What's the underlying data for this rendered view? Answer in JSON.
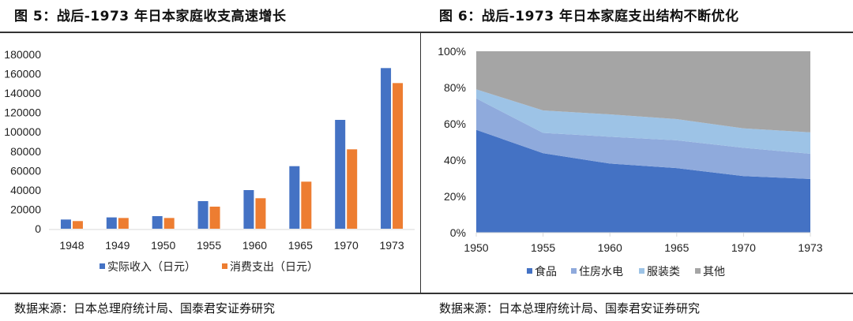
{
  "left": {
    "title": "图 5：战后-1973 年日本家庭收支高速增长",
    "source": "数据来源：日本总理府统计局、国泰君安证券研究"
  },
  "right": {
    "title": "图 6：战后-1973 年日本家庭支出结构不断优化",
    "source": "数据来源：日本总理府统计局、国泰君安证券研究"
  },
  "chart_data": [
    {
      "type": "bar",
      "categories": [
        "1948",
        "1949",
        "1950",
        "1955",
        "1960",
        "1965",
        "1970",
        "1973"
      ],
      "series": [
        {
          "name": "实际收入（日元）",
          "color": "#4472C4",
          "values": [
            9500,
            11700,
            13000,
            28500,
            39900,
            64600,
            112400,
            165900
          ]
        },
        {
          "name": "消费支出（日元）",
          "color": "#ED7D31",
          "values": [
            7900,
            11100,
            11100,
            22800,
            31500,
            48600,
            82000,
            150400
          ]
        }
      ],
      "ylim": [
        0,
        180000
      ],
      "yticks": [
        "0",
        "20000",
        "40000",
        "60000",
        "80000",
        "100000",
        "120000",
        "140000",
        "160000",
        "180000"
      ],
      "grid": false,
      "legend": "bottom"
    },
    {
      "type": "area",
      "stacked": "percent",
      "categories": [
        "1950",
        "1955",
        "1960",
        "1965",
        "1970",
        "1973"
      ],
      "series": [
        {
          "name": "食品",
          "color": "#4472C4",
          "values": [
            56.7,
            43.8,
            38.1,
            35.6,
            31.2,
            29.6
          ]
        },
        {
          "name": "住房水电",
          "color": "#8FAADC",
          "values": [
            17.3,
            11.2,
            14.8,
            15.3,
            15.6,
            13.9
          ]
        },
        {
          "name": "服装类",
          "color": "#9DC3E6",
          "values": [
            5.0,
            12.4,
            12.3,
            11.7,
            10.7,
            11.8
          ]
        },
        {
          "name": "其他",
          "color": "#A5A5A5",
          "values": [
            21.0,
            32.6,
            34.8,
            37.4,
            42.5,
            44.7
          ]
        }
      ],
      "ylim": [
        0,
        100
      ],
      "yticks": [
        "0%",
        "20%",
        "40%",
        "60%",
        "80%",
        "100%"
      ],
      "grid": false,
      "legend": "bottom"
    }
  ]
}
